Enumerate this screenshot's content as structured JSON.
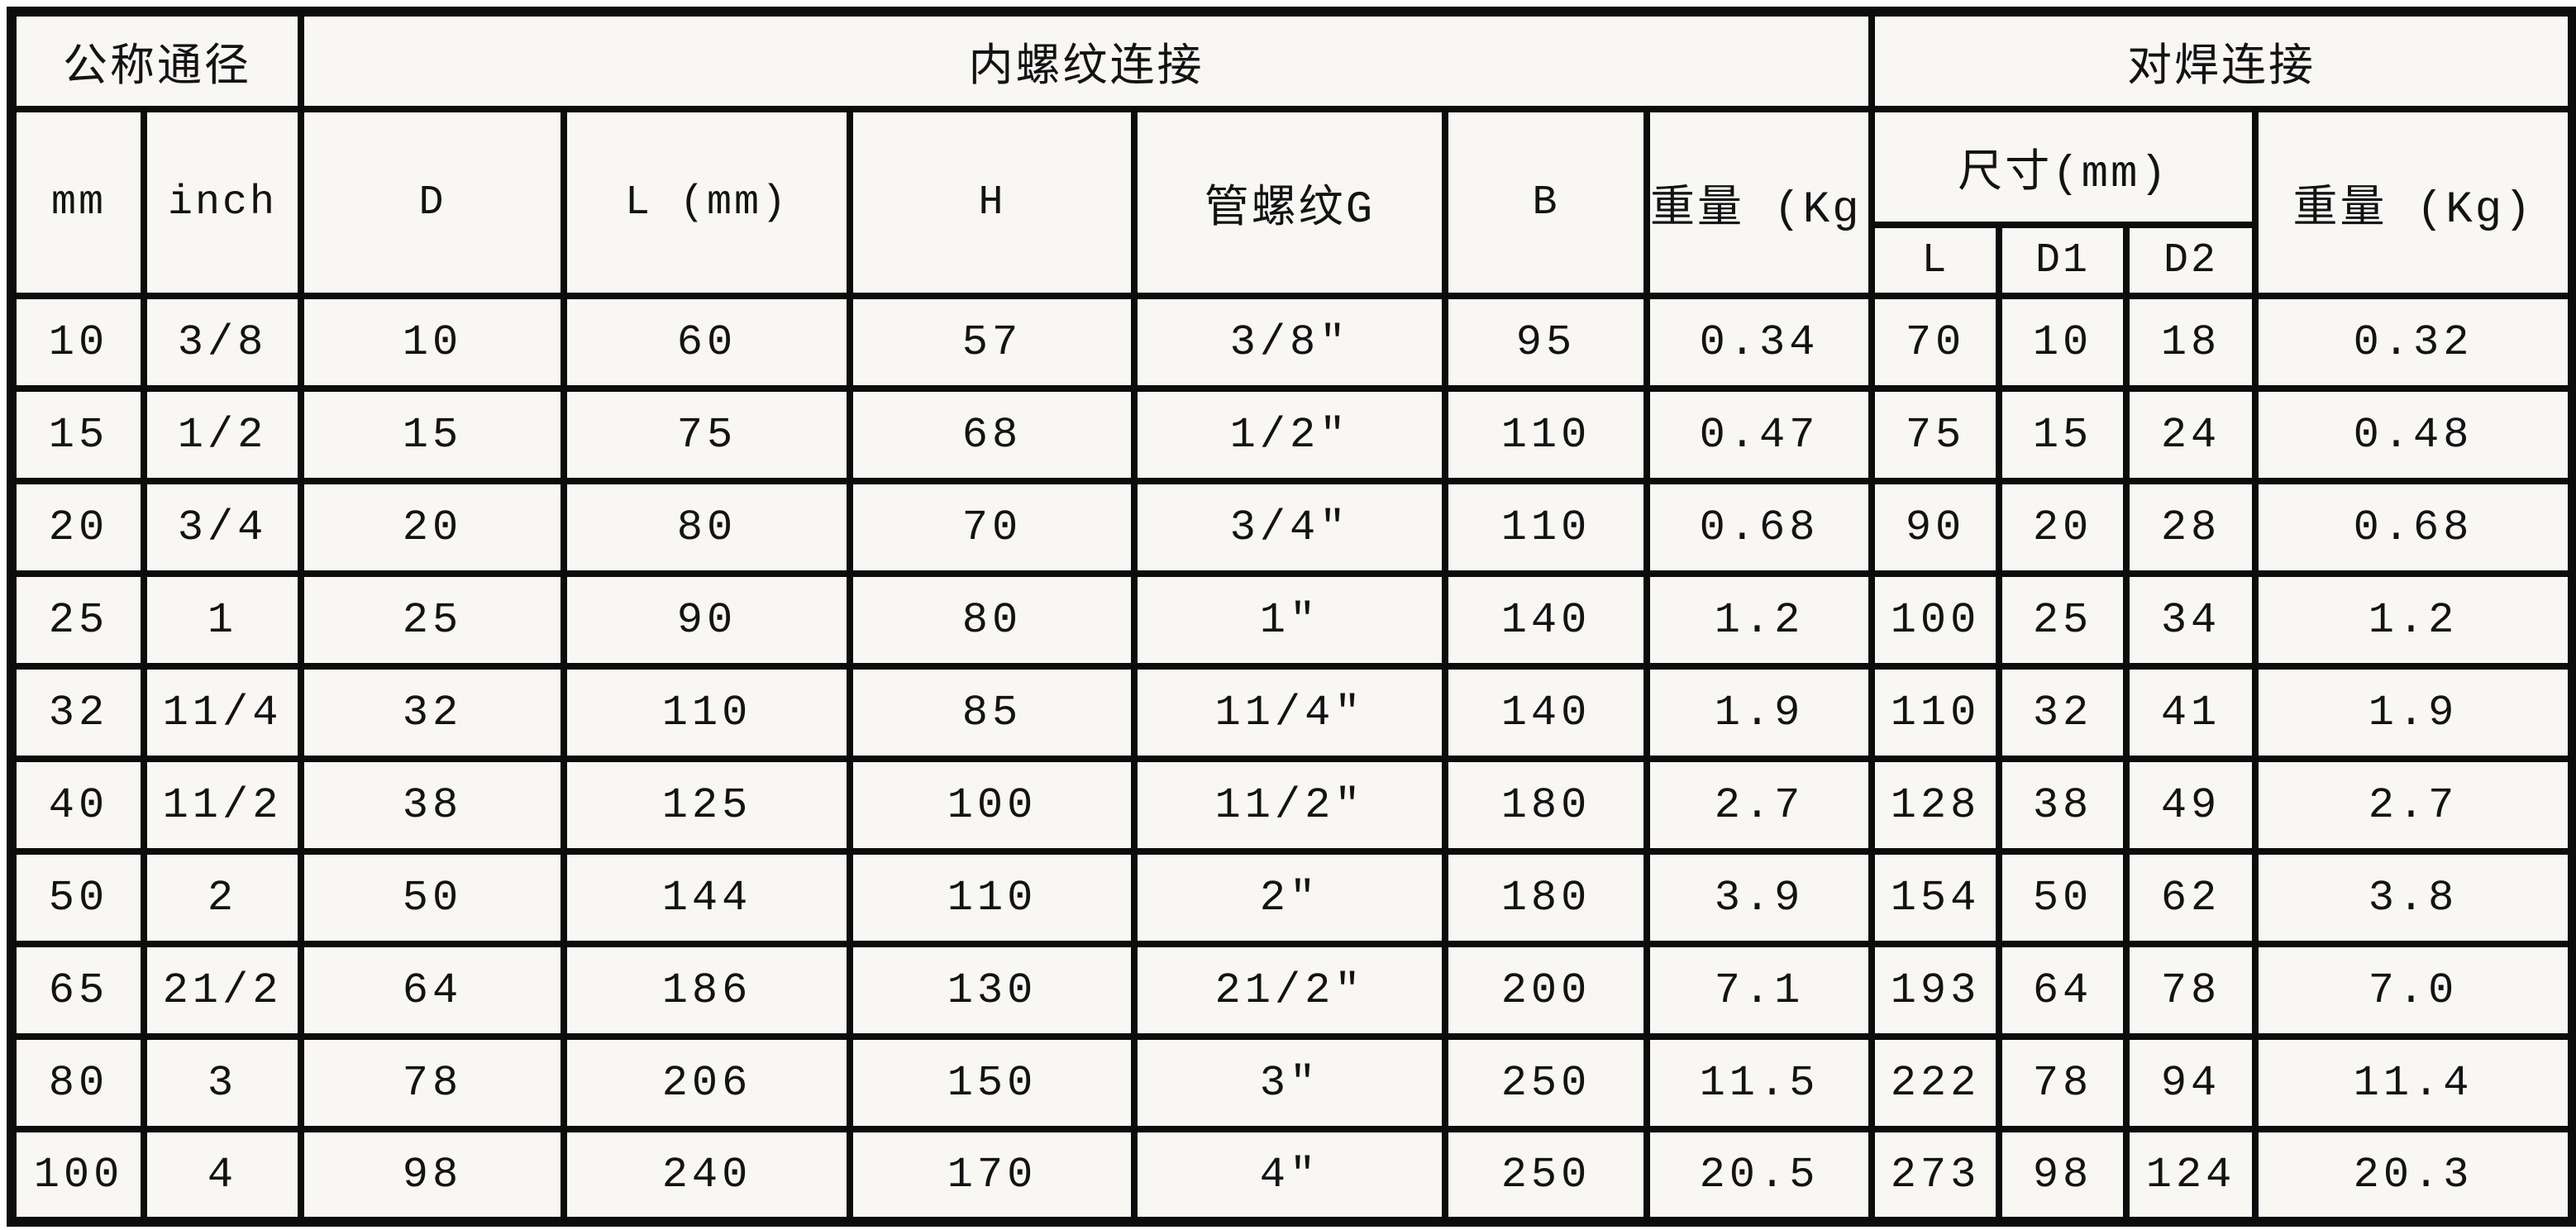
{
  "table": {
    "header": {
      "group_nominal": "公称通径",
      "group_threaded": "内螺纹连接",
      "group_welded": "对焊连接",
      "col_mm": "mm",
      "col_inch": "inch",
      "col_d": "D",
      "col_l": "L (mm)",
      "col_h": "H",
      "col_g": "管螺纹G",
      "col_b": "B",
      "col_weight_threaded": "重量 (Kg)",
      "col_size": "尺寸(mm)",
      "col_weld_l": "L",
      "col_weld_d1": "D1",
      "col_weld_d2": "D2",
      "col_weight_welded": "重量 (Kg)"
    },
    "rows": [
      [
        "10",
        "3/8",
        "10",
        "60",
        "57",
        "3/8″",
        "95",
        "0.34",
        "70",
        "10",
        "18",
        "0.32"
      ],
      [
        "15",
        "1/2",
        "15",
        "75",
        "68",
        "1/2″",
        "110",
        "0.47",
        "75",
        "15",
        "24",
        "0.48"
      ],
      [
        "20",
        "3/4",
        "20",
        "80",
        "70",
        "3/4″",
        "110",
        "0.68",
        "90",
        "20",
        "28",
        "0.68"
      ],
      [
        "25",
        "1",
        "25",
        "90",
        "80",
        "1″",
        "140",
        "1.2",
        "100",
        "25",
        "34",
        "1.2"
      ],
      [
        "32",
        "11/4",
        "32",
        "110",
        "85",
        "11/4″",
        "140",
        "1.9",
        "110",
        "32",
        "41",
        "1.9"
      ],
      [
        "40",
        "11/2",
        "38",
        "125",
        "100",
        "11/2″",
        "180",
        "2.7",
        "128",
        "38",
        "49",
        "2.7"
      ],
      [
        "50",
        "2",
        "50",
        "144",
        "110",
        "2″",
        "180",
        "3.9",
        "154",
        "50",
        "62",
        "3.8"
      ],
      [
        "65",
        "21/2",
        "64",
        "186",
        "130",
        "21/2″",
        "200",
        "7.1",
        "193",
        "64",
        "78",
        "7.0"
      ],
      [
        "80",
        "3",
        "78",
        "206",
        "150",
        "3″",
        "250",
        "11.5",
        "222",
        "78",
        "94",
        "11.4"
      ],
      [
        "100",
        "4",
        "98",
        "240",
        "170",
        "4″",
        "250",
        "20.5",
        "273",
        "98",
        "124",
        "20.3"
      ]
    ],
    "colors": {
      "grid_line": "#0c0c0c",
      "cell_background": "#f8f7f4",
      "text": "#131313"
    }
  }
}
